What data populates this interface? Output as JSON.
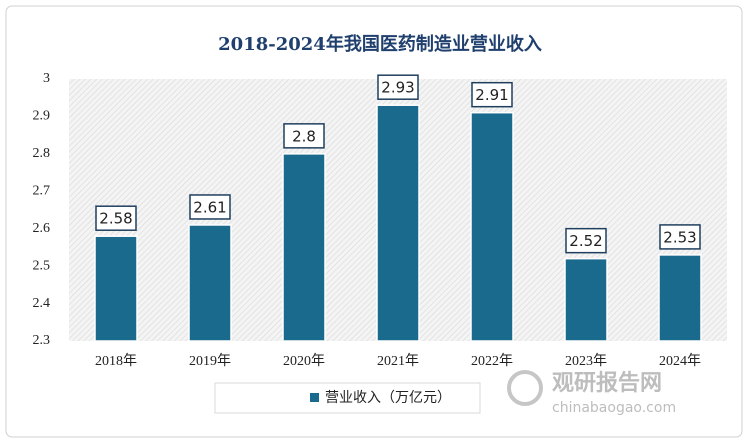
{
  "chart_data": {
    "type": "bar",
    "title": "2018-2024年我国医药制造业营业收入",
    "categories": [
      "2018年",
      "2019年",
      "2020年",
      "2021年",
      "2022年",
      "2023年",
      "2024年"
    ],
    "series": [
      {
        "name": "营业收入（万亿元）",
        "color": "#1a6a8e",
        "values": [
          2.58,
          2.61,
          2.8,
          2.93,
          2.91,
          2.52,
          2.53
        ]
      }
    ],
    "ylim": [
      2.3,
      3
    ],
    "yticks": [
      2.3,
      2.4,
      2.5,
      2.6,
      2.7,
      2.8,
      2.9,
      3
    ],
    "legend": "bottom"
  },
  "watermark": {
    "name": "观研报告网",
    "url": "chinabaogao.com"
  }
}
